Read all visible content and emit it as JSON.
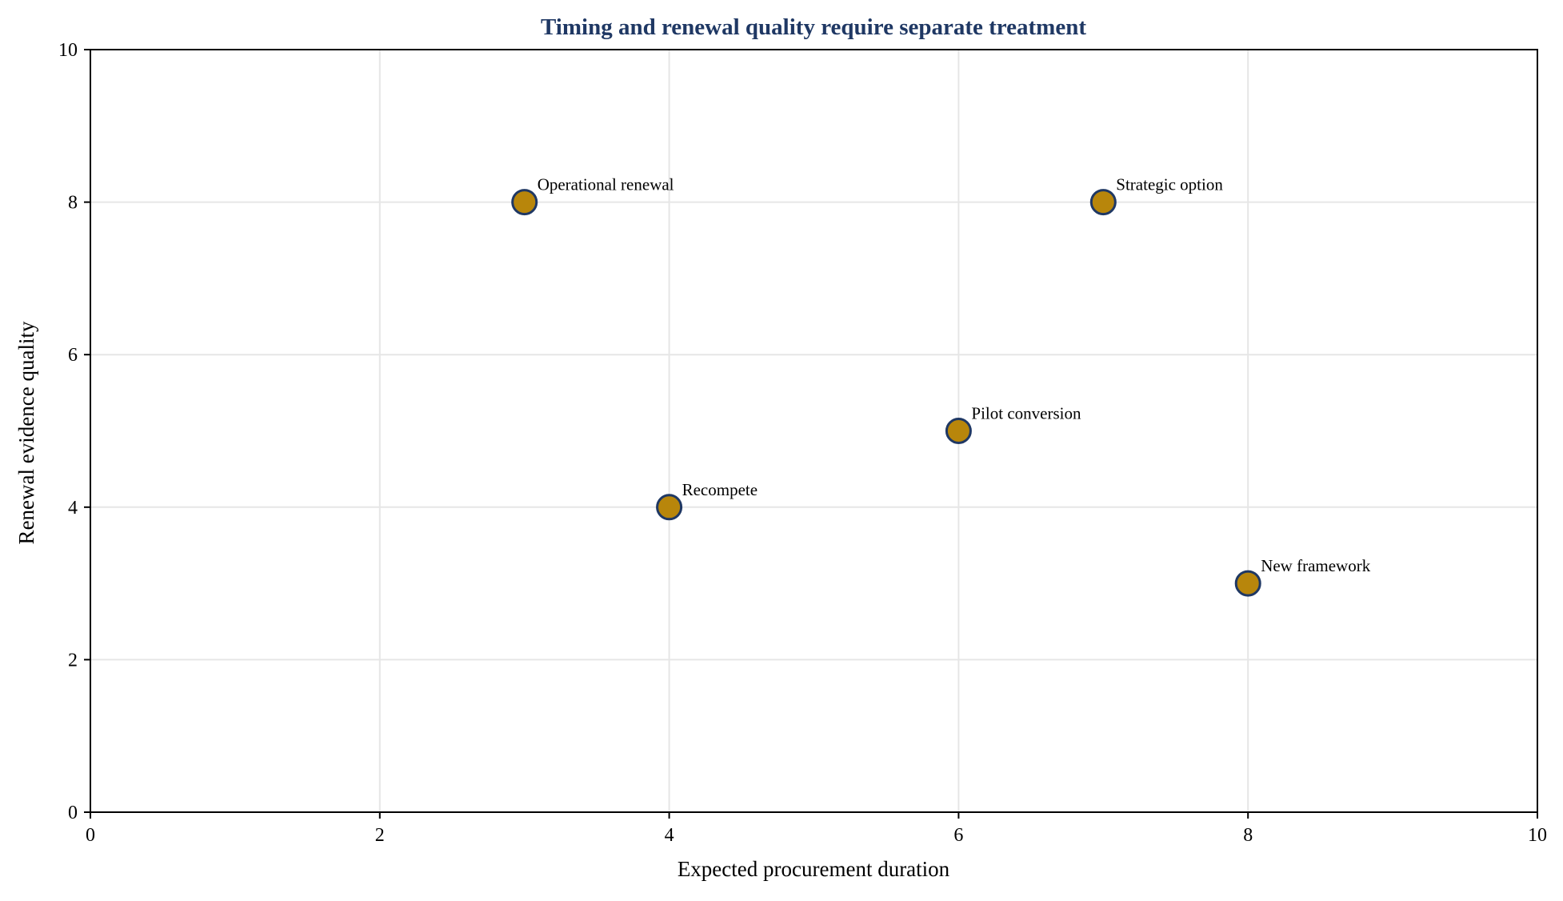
{
  "chart_data": {
    "type": "scatter",
    "title": "Timing and renewal quality require separate treatment",
    "xlabel": "Expected procurement duration",
    "ylabel": "Renewal evidence quality",
    "xlim": [
      0,
      10
    ],
    "ylim": [
      0,
      10
    ],
    "xticks": [
      0,
      2,
      4,
      6,
      8,
      10
    ],
    "yticks": [
      0,
      2,
      4,
      6,
      8,
      10
    ],
    "grid": true,
    "points": [
      {
        "label": "Operational renewal",
        "x": 3,
        "y": 8
      },
      {
        "label": "Strategic option",
        "x": 7,
        "y": 8
      },
      {
        "label": "Pilot conversion",
        "x": 6,
        "y": 5
      },
      {
        "label": "Recompete",
        "x": 4,
        "y": 4
      },
      {
        "label": "New framework",
        "x": 8,
        "y": 3
      }
    ],
    "colors": {
      "title": "#1f3864",
      "marker_fill": "#b8860b",
      "marker_edge": "#1f3864",
      "grid": "#e6e6e6",
      "axis": "#000000"
    }
  }
}
